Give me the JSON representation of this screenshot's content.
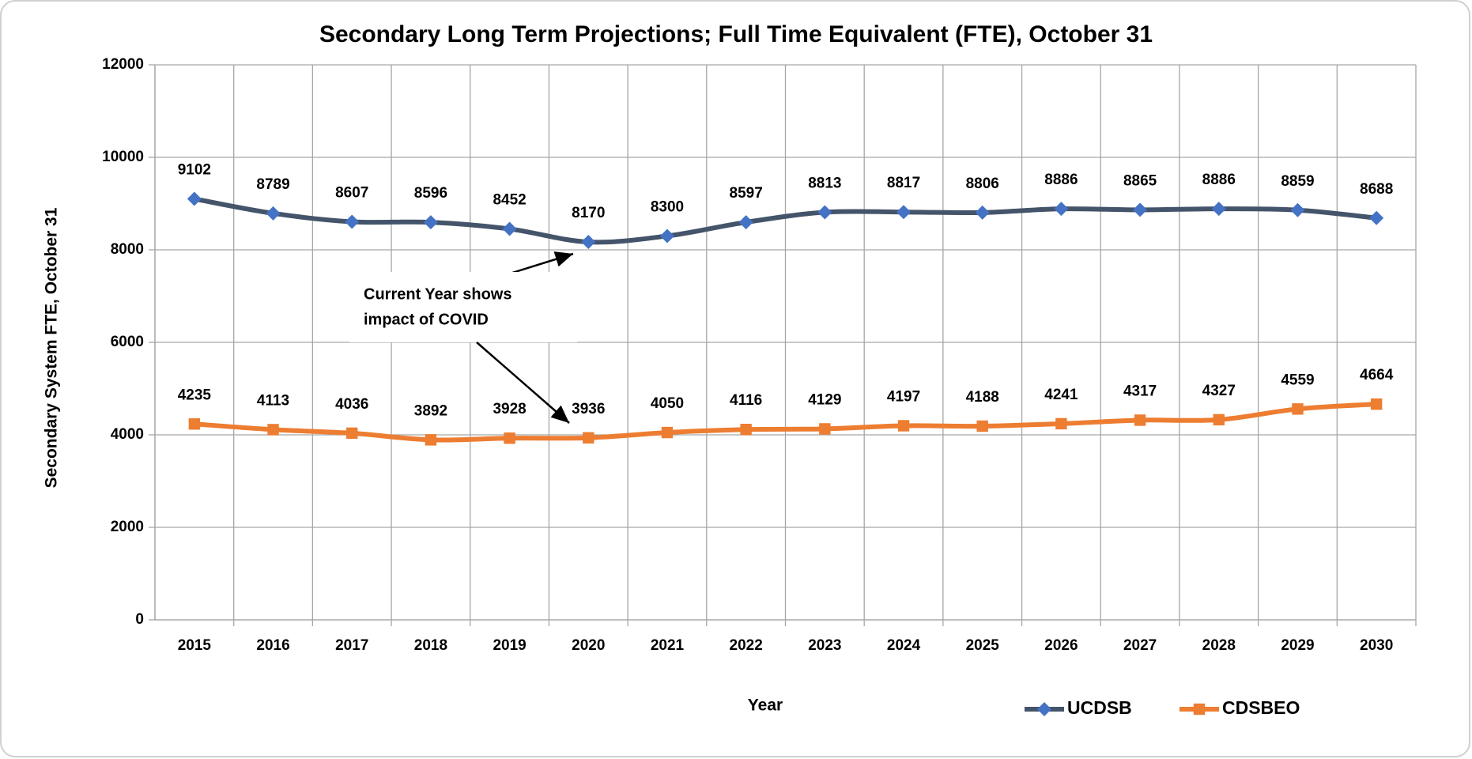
{
  "chart_data": {
    "type": "line",
    "title": "Secondary Long Term Projections; Full Time Equivalent (FTE), October 31",
    "x_label": "Year",
    "y_label": "Secondary System FTE, October 31",
    "categories": [
      "2015",
      "2016",
      "2017",
      "2018",
      "2019",
      "2020",
      "2021",
      "2022",
      "2023",
      "2024",
      "2025",
      "2026",
      "2027",
      "2028",
      "2029",
      "2030"
    ],
    "series": [
      {
        "name": "UCDSB",
        "color": "#44546a",
        "marker_color": "#4472c4",
        "marker": "diamond",
        "values": [
          9102,
          8789,
          8607,
          8596,
          8452,
          8170,
          8300,
          8597,
          8813,
          8817,
          8806,
          8886,
          8865,
          8886,
          8859,
          8688
        ]
      },
      {
        "name": "CDSBEO",
        "color": "#ed7d31",
        "marker_color": "#ed7d31",
        "marker": "square",
        "values": [
          4235,
          4113,
          4036,
          3892,
          3928,
          3936,
          4050,
          4116,
          4129,
          4197,
          4188,
          4241,
          4317,
          4327,
          4559,
          4664
        ]
      }
    ],
    "ylim": [
      0,
      12000
    ],
    "yticks": [
      0,
      2000,
      4000,
      6000,
      8000,
      10000,
      12000
    ],
    "grid": true,
    "legend": "bottom-right",
    "annotation": [
      "Current Year shows",
      "impact of COVID"
    ]
  }
}
